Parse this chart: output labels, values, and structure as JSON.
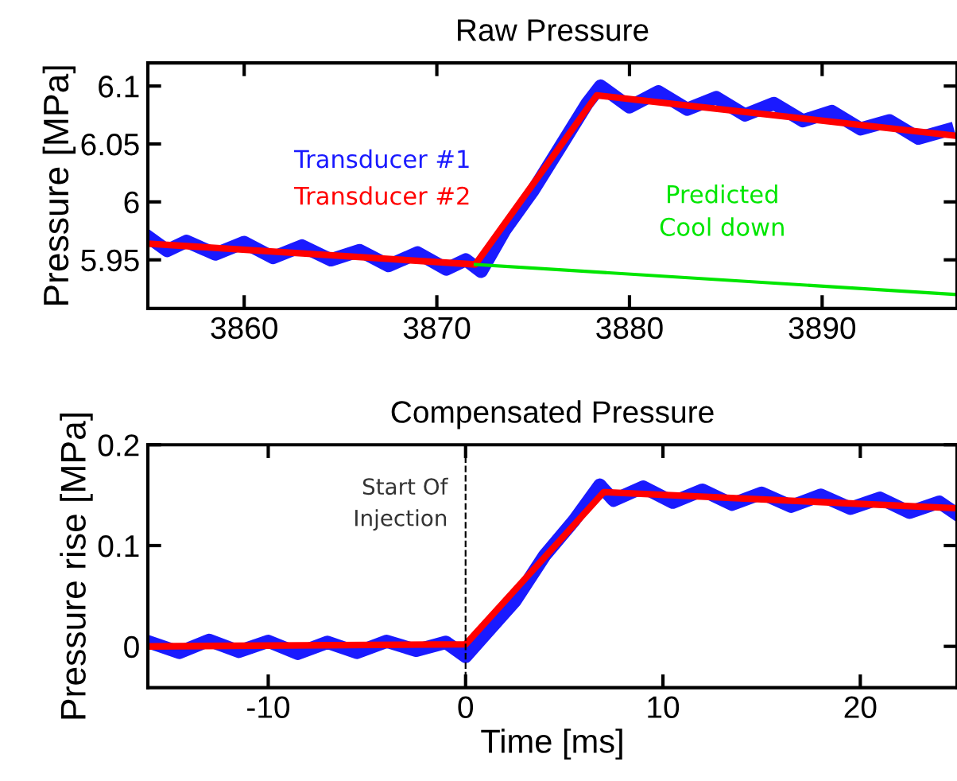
{
  "chart_data": [
    {
      "type": "line",
      "title": "Raw Pressure",
      "ylabel": "Pressure [MPa]",
      "xlim": [
        3855,
        3897
      ],
      "ylim": [
        5.908,
        6.12
      ],
      "xticks": [
        3860,
        3870,
        3880,
        3890
      ],
      "yticks": [
        5.95,
        6,
        6.05,
        6.1
      ],
      "grid": false,
      "legend": false,
      "series": [
        {
          "name": "Transducer #1",
          "color": "#1a1aff",
          "x": [
            3855,
            3856,
            3857,
            3858.5,
            3860,
            3861.5,
            3863,
            3864.5,
            3866,
            3867.5,
            3869,
            3870.5,
            3871.5,
            3872.3,
            3873.5,
            3875,
            3876.5,
            3877.8,
            3878.5,
            3880,
            3881.5,
            3883,
            3884.5,
            3886,
            3887.5,
            3889,
            3890.5,
            3892,
            3893.5,
            3895,
            3896.5
          ],
          "values": [
            5.97,
            5.958,
            5.966,
            5.955,
            5.965,
            5.952,
            5.962,
            5.95,
            5.958,
            5.945,
            5.956,
            5.942,
            5.95,
            5.94,
            5.975,
            6.01,
            6.05,
            6.085,
            6.1,
            6.082,
            6.095,
            6.08,
            6.09,
            6.075,
            6.085,
            6.07,
            6.078,
            6.063,
            6.07,
            6.055,
            6.062
          ]
        },
        {
          "name": "Transducer #2",
          "color": "#ff0000",
          "x": [
            3855,
            3872,
            3878.3,
            3897
          ],
          "values": [
            5.964,
            5.946,
            6.092,
            6.057
          ]
        },
        {
          "name": "Predicted\nCool down",
          "color": "#00e600",
          "x": [
            3872,
            3897
          ],
          "values": [
            5.946,
            5.92
          ]
        }
      ]
    },
    {
      "type": "line",
      "title": "Compensated Pressure",
      "xlabel": "Time [ms]",
      "ylabel": "Pressure rise [MPa]",
      "xlim": [
        -16.1,
        24.9
      ],
      "ylim": [
        -0.041,
        0.2
      ],
      "xticks": [
        -10,
        0,
        10,
        20
      ],
      "yticks": [
        0,
        0.1,
        0.2
      ],
      "grid": false,
      "legend": false,
      "ref_lines": [
        {
          "axis": "x",
          "value": 0,
          "label": "Start Of\nInjection",
          "color": "#000000",
          "line_style": "dashed"
        }
      ],
      "series": [
        {
          "color": "#1a1aff",
          "x": [
            -16,
            -14.5,
            -13,
            -11.5,
            -10,
            -8.5,
            -7,
            -5.5,
            -4,
            -2.5,
            -1,
            0,
            1,
            2.5,
            4,
            5.5,
            6.8,
            7.5,
            9,
            10.5,
            12,
            13.5,
            15,
            16.5,
            18,
            19.5,
            21,
            22.5,
            24,
            24.9
          ],
          "values": [
            0.004,
            -0.006,
            0.006,
            -0.005,
            0.005,
            -0.007,
            0.004,
            -0.006,
            0.005,
            -0.004,
            0.004,
            -0.01,
            0.012,
            0.045,
            0.09,
            0.125,
            0.16,
            0.145,
            0.158,
            0.143,
            0.155,
            0.141,
            0.152,
            0.139,
            0.15,
            0.137,
            0.147,
            0.133,
            0.143,
            0.131
          ]
        },
        {
          "color": "#ff0000",
          "x": [
            -16,
            0,
            7,
            24.9
          ],
          "values": [
            0,
            0.002,
            0.153,
            0.137
          ]
        }
      ]
    }
  ]
}
